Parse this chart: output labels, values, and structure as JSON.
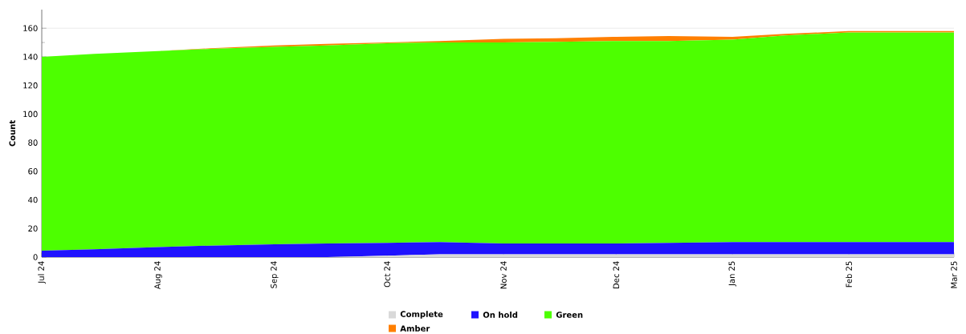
{
  "chart_data": {
    "type": "area",
    "stacked": true,
    "ylabel": "Count",
    "x": [
      "2024-07-01",
      "2024-07-15",
      "2024-08-01",
      "2024-08-15",
      "2024-09-01",
      "2024-09-15",
      "2024-10-01",
      "2024-10-15",
      "2024-11-01",
      "2024-11-15",
      "2024-12-01",
      "2024-12-15",
      "2025-01-01",
      "2025-01-15",
      "2025-02-01",
      "2025-03-01"
    ],
    "series": [
      {
        "name": "Complete",
        "color": "#d9d9d9",
        "values": [
          0,
          0,
          0,
          0,
          0,
          0,
          1,
          2,
          2,
          2,
          2,
          2,
          2,
          2,
          2,
          2
        ]
      },
      {
        "name": "On hold",
        "color": "#1f12ff",
        "values": [
          4.5,
          5.5,
          7,
          8,
          9,
          9.5,
          9,
          8.5,
          7.5,
          7.5,
          7.5,
          8,
          8.5,
          8.5,
          8.5,
          8.5
        ]
      },
      {
        "name": "Green",
        "color": "#4dff00",
        "values": [
          135.5,
          136.5,
          137,
          137.5,
          138,
          138.5,
          139.5,
          139.5,
          140.5,
          141,
          141.5,
          141,
          141.5,
          144.5,
          146.5,
          146.5
        ]
      },
      {
        "name": "Amber",
        "color": "#ff7f00",
        "values": [
          0,
          0,
          0,
          0.5,
          1,
          1,
          0.5,
          1,
          2.5,
          2.5,
          3,
          3.5,
          2,
          1,
          1,
          1
        ]
      }
    ],
    "xlim": [
      "2024-07-01",
      "2025-03-01"
    ],
    "xticks": [
      {
        "value": "2024-07-01",
        "label": "Jul 24"
      },
      {
        "value": "2024-08-01",
        "label": "Aug 24"
      },
      {
        "value": "2024-09-01",
        "label": "Sep 24"
      },
      {
        "value": "2024-10-01",
        "label": "Oct 24"
      },
      {
        "value": "2024-11-01",
        "label": "Nov 24"
      },
      {
        "value": "2024-12-01",
        "label": "Dec 24"
      },
      {
        "value": "2025-01-01",
        "label": "Jan 25"
      },
      {
        "value": "2025-02-01",
        "label": "Feb 25"
      },
      {
        "value": "2025-03-01",
        "label": "Mar 25"
      }
    ],
    "ylim": [
      0,
      173
    ],
    "yticks": [
      0,
      20,
      40,
      60,
      80,
      100,
      120,
      140,
      160
    ],
    "grid": "y",
    "legend": "bottom"
  }
}
